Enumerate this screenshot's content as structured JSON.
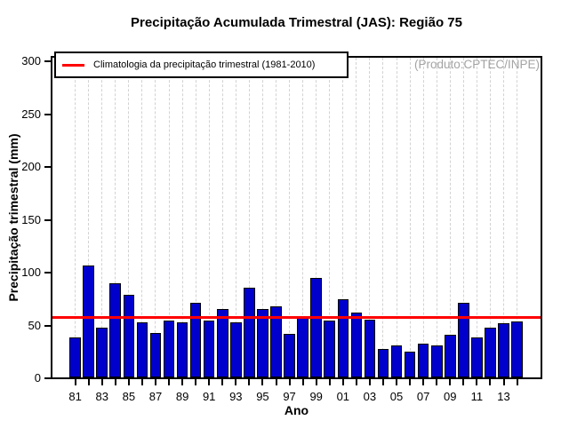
{
  "title": "Precipitação Acumulada Trimestral (JAS): Região 75",
  "watermark": "(Produto:CPTEC/INPE)",
  "legend": {
    "climatology_label": "Climatologia da precipitação trimestral (1981-2010)"
  },
  "axes": {
    "xlabel": "Ano",
    "ylabel": "Precipitação trimestral (mm)"
  },
  "chart_data": {
    "type": "bar",
    "title": "Precipitação Acumulada Trimestral (JAS): Região 75",
    "xlabel": "Ano",
    "ylabel": "Precipitação trimestral (mm)",
    "ylim": [
      0,
      300
    ],
    "yticks": [
      0,
      50,
      100,
      150,
      200,
      250,
      300
    ],
    "grid": "vertical-dashed",
    "legend_position": "top-left",
    "legend_label": "Climatologia da precipitação trimestral (1981-2010)",
    "annotation": "(Produto:CPTEC/INPE)",
    "years": [
      1981,
      1982,
      1983,
      1984,
      1985,
      1986,
      1987,
      1988,
      1989,
      1990,
      1991,
      1992,
      1993,
      1994,
      1995,
      1996,
      1997,
      1998,
      1999,
      2000,
      2001,
      2002,
      2003,
      2004,
      2005,
      2006,
      2007,
      2008,
      2009,
      2010,
      2011,
      2012,
      2013,
      2014
    ],
    "values": [
      38,
      106,
      47,
      89,
      78,
      52,
      42,
      54,
      52,
      71,
      54,
      65,
      52,
      85,
      65,
      67,
      41,
      56,
      94,
      54,
      74,
      61,
      55,
      27,
      30,
      24,
      32,
      30,
      40,
      71,
      38,
      47,
      51,
      53
    ],
    "xtick_labels_shown": [
      "81",
      "83",
      "85",
      "87",
      "89",
      "91",
      "93",
      "95",
      "97",
      "99",
      "01",
      "03",
      "05",
      "07",
      "09",
      "11",
      "13"
    ],
    "climatology_value": 57,
    "colors": {
      "bar": "#0000CD",
      "bar_border": "#000000",
      "climatology_line": "#FF0000",
      "grid": "#D2D2D2",
      "annotation": "#A3A3A3"
    }
  }
}
